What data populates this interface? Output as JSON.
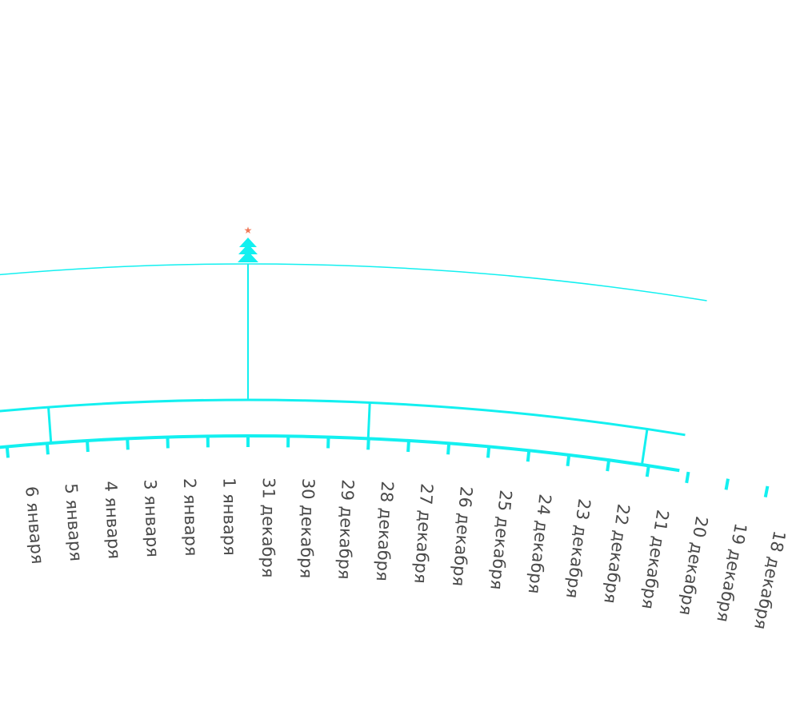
{
  "colors": {
    "accent": "#13f0f0",
    "label_text": "#4a4a4a",
    "star": "#f07a5a"
  },
  "icons": {
    "tree": "christmas-tree-icon",
    "star": "star-icon"
  },
  "days": [
    "6 января",
    "5 января",
    "4 января",
    "3 января",
    "2 января",
    "1 января",
    "31 декабря",
    "30 декабря",
    "29 декабря",
    "28 декабря",
    "27 декабря",
    "26 декабря",
    "25 декабря",
    "24 декабря",
    "23 декабря",
    "22 декабря",
    "21 декабря",
    "20 декабря",
    "19 декабря",
    "18 декабря"
  ]
}
